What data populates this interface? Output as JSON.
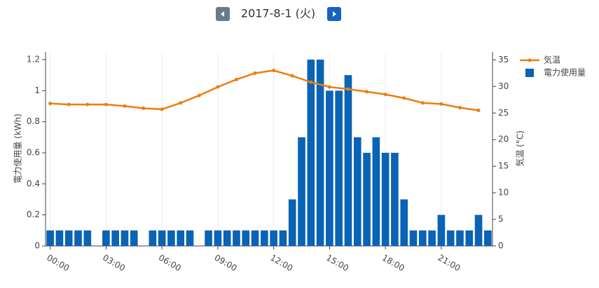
{
  "chart_data": {
    "type": "bar+line",
    "title": "2017-8-1 (火)",
    "ylabel": "電力使用量 (kWh)",
    "y2label": "気温 (°C)",
    "xlim": [
      -0.25,
      23.75
    ],
    "xticks": [
      {
        "value": 0,
        "label": "00:00"
      },
      {
        "value": 3,
        "label": "03:00"
      },
      {
        "value": 6,
        "label": "06:00"
      },
      {
        "value": 9,
        "label": "09:00"
      },
      {
        "value": 12,
        "label": "12:00"
      },
      {
        "value": 15,
        "label": "15:00"
      },
      {
        "value": 18,
        "label": "18:00"
      },
      {
        "value": 21,
        "label": "21:00"
      }
    ],
    "ylim": [
      0,
      1.25
    ],
    "yticks": [
      0,
      0.2,
      0.4,
      0.6,
      0.8,
      1,
      1.2
    ],
    "y2lim": [
      0,
      36.5
    ],
    "y2ticks": [
      0,
      5,
      10,
      15,
      20,
      25,
      30,
      35
    ],
    "grid": "x",
    "legend": "right",
    "series": [
      {
        "name": "気温",
        "type": "line",
        "axis": "y2",
        "color": "#ec7e0e",
        "x": [
          0,
          1,
          2,
          3,
          4,
          5,
          6,
          7,
          8,
          9,
          10,
          11,
          12,
          13,
          14,
          15,
          16,
          17,
          18,
          19,
          20,
          21,
          22,
          23
        ],
        "values": [
          26.8,
          26.6,
          26.6,
          26.6,
          26.3,
          25.9,
          25.7,
          26.9,
          28.3,
          29.9,
          31.3,
          32.5,
          33.0,
          32.0,
          30.8,
          29.9,
          29.5,
          29.0,
          28.5,
          27.8,
          26.9,
          26.7,
          26.0,
          25.5
        ]
      },
      {
        "name": "電力使用量",
        "type": "bar",
        "axis": "y",
        "color": "#0a63b5",
        "x": [
          0,
          0.5,
          1,
          1.5,
          2,
          2.5,
          3,
          3.5,
          4,
          4.5,
          5,
          5.5,
          6,
          6.5,
          7,
          7.5,
          8,
          8.5,
          9,
          9.5,
          10,
          10.5,
          11,
          11.5,
          12,
          12.5,
          13,
          13.5,
          14,
          14.5,
          15,
          15.5,
          16,
          16.5,
          17,
          17.5,
          18,
          18.5,
          19,
          19.5,
          20,
          20.5,
          21,
          21.5,
          22,
          22.5,
          23,
          23.5
        ],
        "values": [
          0.1,
          0.1,
          0.1,
          0.1,
          0.1,
          0,
          0.1,
          0.1,
          0.1,
          0.1,
          0,
          0.1,
          0.1,
          0.1,
          0.1,
          0.1,
          0,
          0.1,
          0.1,
          0.1,
          0.1,
          0.1,
          0.1,
          0.1,
          0.1,
          0.1,
          0.3,
          0.7,
          1.2,
          1.2,
          1.0,
          1.0,
          1.1,
          0.7,
          0.6,
          0.7,
          0.6,
          0.6,
          0.3,
          0.1,
          0.1,
          0.1,
          0.2,
          0.1,
          0.1,
          0.1,
          0.2,
          0.1
        ]
      }
    ]
  }
}
